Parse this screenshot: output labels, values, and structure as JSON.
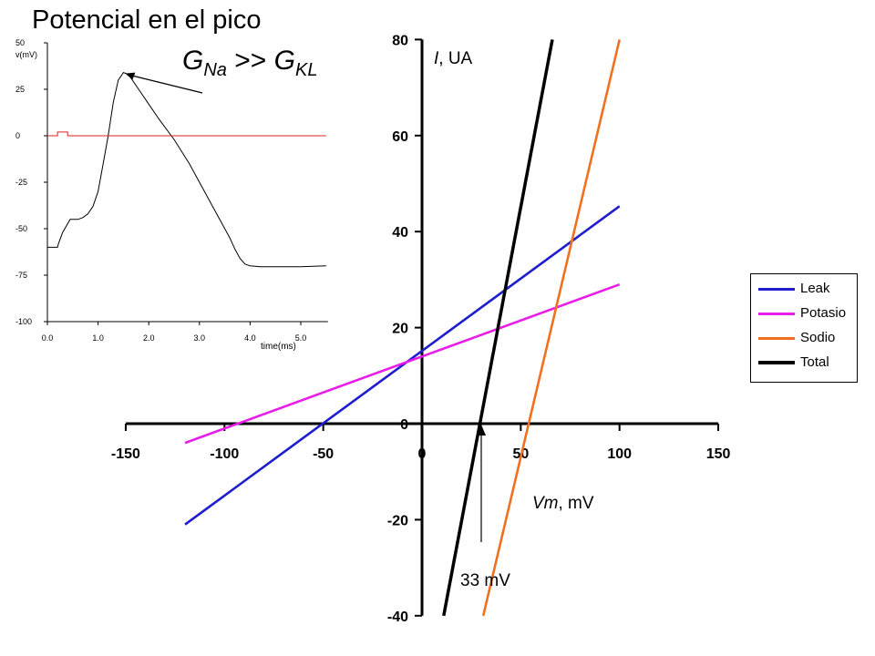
{
  "slide": {
    "title": "Potencial en el pico",
    "conductance_ratio": {
      "g1": "G",
      "sub1": "Na",
      "op": ">>",
      "g2": "G",
      "sub2": "KL"
    }
  },
  "chart_data": [
    {
      "type": "line",
      "title": "",
      "xlabel": "Vm, mV",
      "ylabel": "I, UA",
      "xlim": [
        -150,
        150
      ],
      "ylim": [
        -40,
        80
      ],
      "xticks": [
        "-150",
        "-100",
        "-50",
        "0",
        "50",
        "100",
        "150"
      ],
      "yticks": [
        "80",
        "60",
        "40",
        "20",
        "0",
        "-20",
        "-40"
      ],
      "legend_position": "right",
      "series": [
        {
          "name": "Leak",
          "color": "#1e1ecf",
          "x": [
            -120,
            100
          ],
          "y": [
            -21,
            45.3
          ]
        },
        {
          "name": "Potasio",
          "color": "#e81ee8",
          "x": [
            -120,
            100
          ],
          "y": [
            -4,
            29
          ]
        },
        {
          "name": "Sodio",
          "color": "#f07020",
          "x": [
            31,
            100
          ],
          "y": [
            -40,
            80
          ]
        },
        {
          "name": "Total",
          "color": "#000000",
          "x": [
            11,
            66
          ],
          "y": [
            -40,
            80
          ]
        }
      ],
      "annotations": [
        {
          "text": "33 mV",
          "x": 30,
          "y": 0
        }
      ]
    },
    {
      "type": "line",
      "title": "",
      "xlabel": "time(ms)",
      "ylabel": "v(mV)",
      "xlim": [
        0,
        5.5
      ],
      "ylim": [
        -100,
        50
      ],
      "xticks": [
        "0.0",
        "1.0",
        "2.0",
        "3.0",
        "4.0",
        "5.0"
      ],
      "yticks": [
        "50",
        "25",
        "0",
        "-25",
        "-50",
        "-75",
        "-100"
      ],
      "series": [
        {
          "name": "",
          "color": "#000000",
          "x": [
            0,
            0.2,
            0.22,
            0.3,
            0.45,
            0.5,
            0.6,
            0.7,
            0.8,
            0.9,
            1.0,
            1.1,
            1.2,
            1.3,
            1.4,
            1.5,
            1.6,
            1.8,
            2.0,
            2.2,
            2.5,
            2.8,
            3.0,
            3.2,
            3.4,
            3.6,
            3.7,
            3.8,
            3.9,
            4.0,
            4.2,
            4.5,
            5.0,
            5.5
          ],
          "y": [
            -60,
            -60,
            -58,
            -52,
            -45,
            -45,
            -45,
            -44,
            -42,
            -38,
            -30,
            -15,
            0,
            18,
            30,
            34,
            33,
            25,
            17,
            9,
            -2,
            -15,
            -25,
            -35,
            -45,
            -55,
            -61,
            -66,
            -69,
            -70,
            -70.5,
            -70.5,
            -70.5,
            -70
          ]
        },
        {
          "name": "",
          "color": "#e02020",
          "x": [
            0,
            0.2,
            0.2,
            0.4,
            0.4,
            5.5
          ],
          "y": [
            0,
            0,
            2,
            2,
            0,
            0
          ]
        }
      ]
    }
  ]
}
